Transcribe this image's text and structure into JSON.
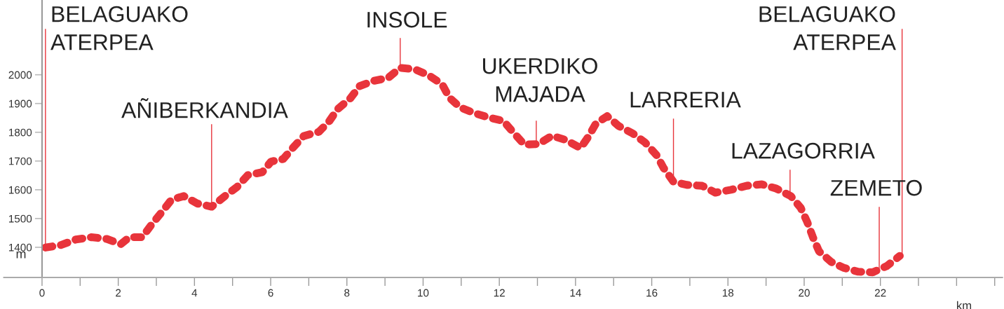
{
  "chart_data": {
    "type": "line",
    "xlabel": "km",
    "ylabel": "m",
    "x": [
      0.09,
      0.5,
      0.89,
      1.29,
      1.7,
      2.07,
      2.29,
      2.63,
      2.88,
      3.14,
      3.4,
      3.72,
      4.08,
      4.45,
      4.8,
      5.12,
      5.4,
      5.78,
      6.01,
      6.33,
      6.59,
      6.87,
      7.27,
      7.54,
      7.76,
      8.09,
      8.34,
      8.71,
      9.08,
      9.4,
      9.78,
      10.15,
      10.5,
      10.69,
      10.98,
      11.36,
      11.74,
      12.11,
      12.39,
      12.66,
      13.03,
      13.38,
      13.75,
      14.13,
      14.32,
      14.53,
      14.83,
      15.13,
      15.5,
      15.82,
      16.13,
      16.31,
      16.57,
      16.92,
      17.32,
      17.67,
      18.08,
      18.49,
      18.89,
      19.27,
      19.65,
      19.91,
      20.08,
      20.23,
      20.39,
      20.7,
      21.03,
      21.42,
      21.8,
      22.17,
      22.51
    ],
    "series": [
      {
        "color": "#e8343b",
        "values": [
          1399,
          1408,
          1427,
          1435,
          1429,
          1411,
          1435,
          1435,
          1480,
          1522,
          1566,
          1578,
          1552,
          1541,
          1578,
          1610,
          1651,
          1661,
          1698,
          1707,
          1747,
          1787,
          1802,
          1839,
          1881,
          1918,
          1961,
          1979,
          1989,
          2024,
          2019,
          1998,
          1967,
          1920,
          1886,
          1866,
          1851,
          1839,
          1796,
          1757,
          1759,
          1788,
          1773,
          1745,
          1781,
          1829,
          1856,
          1822,
          1796,
          1765,
          1720,
          1676,
          1628,
          1617,
          1614,
          1590,
          1600,
          1614,
          1619,
          1604,
          1578,
          1537,
          1488,
          1435,
          1386,
          1350,
          1329,
          1315,
          1313,
          1335,
          1370
        ]
      }
    ],
    "line_style": "dashed",
    "marker": "none",
    "grid": false,
    "legend": false,
    "xlim": [
      -1,
      25.2
    ],
    "ylim": [
      1295,
      2260
    ],
    "xticks": [
      0,
      {
        "value": 1,
        "label": null
      },
      2,
      {
        "value": 3,
        "label": null
      },
      4,
      {
        "value": 5,
        "label": null
      },
      6,
      {
        "value": 7,
        "label": null
      },
      8,
      {
        "value": 9,
        "label": null
      },
      10,
      {
        "value": 11,
        "label": null
      },
      12,
      {
        "value": 13,
        "label": null
      },
      14,
      {
        "value": 15,
        "label": null
      },
      16,
      {
        "value": 17,
        "label": null
      },
      18,
      {
        "value": 19,
        "label": null
      },
      20,
      {
        "value": 21,
        "label": null
      },
      22,
      {
        "value": 23,
        "label": null
      },
      {
        "value": 24,
        "label": null
      },
      {
        "value": 25,
        "label": null
      }
    ],
    "yticks": [
      1400,
      1500,
      1600,
      1700,
      1800,
      1900,
      2000
    ],
    "annotations": [
      {
        "text": "BELAGUAKO\nATERPEA",
        "x": 0.09,
        "y": 1399
      },
      {
        "text": "AÑIBERKANDIA",
        "x": 4.45,
        "y": 1541
      },
      {
        "text": "INSOLE",
        "x": 9.4,
        "y": 2024
      },
      {
        "text": "UKERDIKO\nMAJADA",
        "x": 12.97,
        "y": 1759
      },
      {
        "text": "LARRERIA",
        "x": 16.57,
        "y": 1628
      },
      {
        "text": "LAZAGORRIA",
        "x": 19.63,
        "y": 1578
      },
      {
        "text": "ZEMETO",
        "x": 21.97,
        "y": 1313
      },
      {
        "text": "BELAGUAKO\nATERPEA",
        "x": 22.57,
        "y": 1370
      }
    ]
  }
}
